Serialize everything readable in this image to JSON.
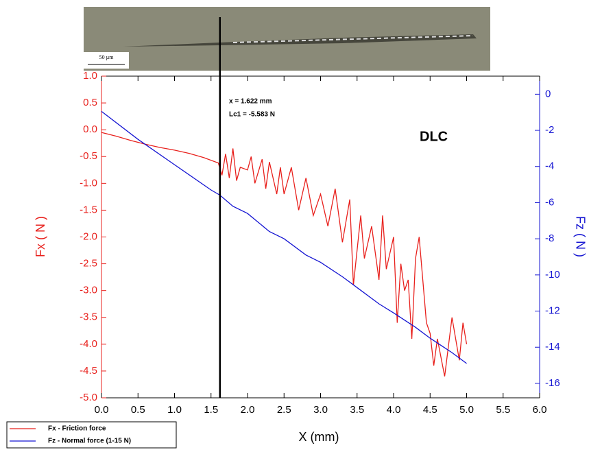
{
  "chart_data": {
    "type": "line",
    "image_scale_label": "50 µm",
    "annotations": [
      "x = 1.622 mm",
      "Lc1 = -5.583 N",
      "DLC"
    ],
    "marker_x": 1.622,
    "x_label": "X (mm)",
    "y_label": "Fx ( N )",
    "y2_label": "Fz ( N )",
    "xlim": [
      0,
      6
    ],
    "ylim": [
      -5,
      1
    ],
    "y2lim": [
      -16.8,
      1.0
    ],
    "xticks": [
      {
        "value": 0,
        "label": "0.0"
      },
      {
        "value": 0.5,
        "label": "0.5"
      },
      {
        "value": 1,
        "label": "1.0"
      },
      {
        "value": 1.5,
        "label": "1.5"
      },
      {
        "value": 2,
        "label": "2.0"
      },
      {
        "value": 2.5,
        "label": "2.5"
      },
      {
        "value": 3,
        "label": "3.0"
      },
      {
        "value": 3.5,
        "label": "3.5"
      },
      {
        "value": 4,
        "label": "4.0"
      },
      {
        "value": 4.5,
        "label": "4.5"
      },
      {
        "value": 5,
        "label": "5.0"
      },
      {
        "value": 5.5,
        "label": "5.5"
      },
      {
        "value": 6,
        "label": "6.0"
      }
    ],
    "yticks": [
      {
        "value": 1,
        "label": "1.0"
      },
      {
        "value": 0.5,
        "label": "0.5"
      },
      {
        "value": 0,
        "label": "0.0"
      },
      {
        "value": -0.5,
        "label": "-0.5"
      },
      {
        "value": -1,
        "label": "-1.0"
      },
      {
        "value": -1.5,
        "label": "-1.5"
      },
      {
        "value": -2,
        "label": "-2.0"
      },
      {
        "value": -2.5,
        "label": "-2.5"
      },
      {
        "value": -3,
        "label": "-3.0"
      },
      {
        "value": -3.5,
        "label": "-3.5"
      },
      {
        "value": -4,
        "label": "-4.0"
      },
      {
        "value": -4.5,
        "label": "-4.5"
      },
      {
        "value": -5,
        "label": "-5.0"
      }
    ],
    "y2ticks": [
      0,
      -2,
      -4,
      -6,
      -8,
      -10,
      -12,
      -14,
      -16
    ],
    "series": [
      {
        "name": "Fx - Friction force",
        "color": "#e8201c",
        "axis": "y",
        "x": [
          0,
          0.2,
          0.4,
          0.6,
          0.8,
          1.0,
          1.2,
          1.4,
          1.6,
          1.65,
          1.7,
          1.75,
          1.8,
          1.85,
          1.9,
          2.0,
          2.05,
          2.1,
          2.2,
          2.25,
          2.3,
          2.4,
          2.45,
          2.5,
          2.6,
          2.7,
          2.8,
          2.9,
          3.0,
          3.1,
          3.2,
          3.3,
          3.4,
          3.45,
          3.55,
          3.6,
          3.7,
          3.8,
          3.85,
          3.9,
          4.0,
          4.05,
          4.1,
          4.15,
          4.2,
          4.25,
          4.3,
          4.35,
          4.45,
          4.5,
          4.55,
          4.6,
          4.7,
          4.8,
          4.9,
          4.95,
          5.0
        ],
        "values": [
          -0.05,
          -0.12,
          -0.2,
          -0.27,
          -0.33,
          -0.38,
          -0.44,
          -0.52,
          -0.62,
          -0.85,
          -0.45,
          -0.9,
          -0.35,
          -0.95,
          -0.7,
          -0.75,
          -0.5,
          -1.0,
          -0.55,
          -1.1,
          -0.6,
          -1.2,
          -0.7,
          -1.2,
          -0.7,
          -1.5,
          -0.9,
          -1.6,
          -1.2,
          -1.8,
          -1.1,
          -2.1,
          -1.3,
          -2.9,
          -1.6,
          -2.4,
          -1.8,
          -2.8,
          -1.6,
          -2.6,
          -2.0,
          -3.6,
          -2.5,
          -3.0,
          -2.8,
          -3.9,
          -2.4,
          -2.0,
          -3.6,
          -3.8,
          -4.4,
          -3.9,
          -4.6,
          -3.5,
          -4.3,
          -3.6,
          -4.0
        ]
      },
      {
        "name": "Fz - Normal force (1-15 N)",
        "color": "#1414d2",
        "axis": "y2",
        "x": [
          0,
          0.5,
          1.0,
          1.5,
          1.622,
          1.8,
          2.0,
          2.3,
          2.5,
          2.8,
          3.0,
          3.3,
          3.5,
          3.8,
          4.0,
          4.3,
          4.5,
          4.8,
          5.0
        ],
        "values": [
          -0.95,
          -2.5,
          -3.9,
          -5.3,
          -5.583,
          -6.2,
          -6.6,
          -7.6,
          -8.0,
          -8.9,
          -9.3,
          -10.1,
          -10.7,
          -11.6,
          -12.1,
          -12.9,
          -13.5,
          -14.3,
          -14.9
        ]
      }
    ]
  }
}
